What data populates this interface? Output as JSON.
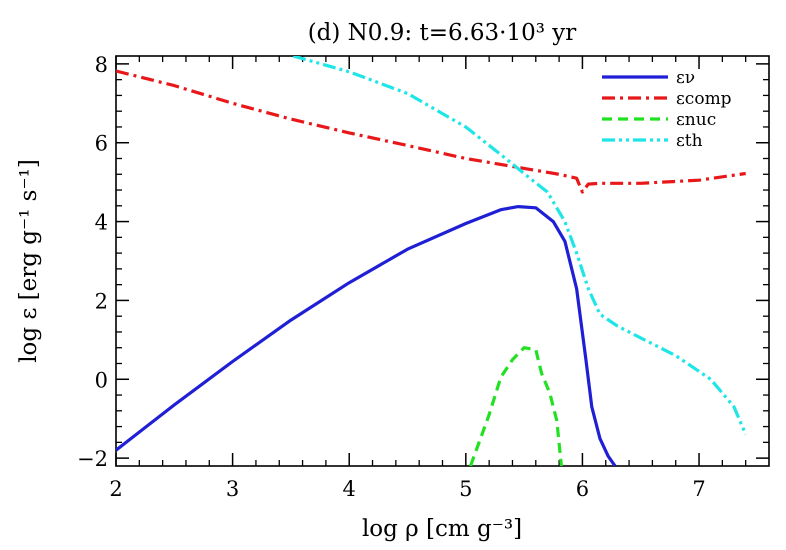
{
  "chart_data": {
    "type": "line",
    "title": "(d) N0.9: t=6.63·10³ yr",
    "xlabel": "log ρ [cm g⁻³]",
    "ylabel": "log ε [erg g⁻¹ s⁻¹]",
    "xlim": [
      2,
      7.6
    ],
    "ylim": [
      -2.2,
      8.2
    ],
    "xticks": [
      2,
      3,
      4,
      5,
      6,
      7
    ],
    "yticks": [
      -2,
      0,
      2,
      4,
      6,
      8
    ],
    "legend_position": "top-right",
    "grid": false,
    "series": [
      {
        "name": "εν",
        "color": "#1f1fd6",
        "dash": "solid",
        "points": [
          [
            2.0,
            -1.8
          ],
          [
            2.5,
            -0.65
          ],
          [
            3.0,
            0.45
          ],
          [
            3.5,
            1.5
          ],
          [
            4.0,
            2.45
          ],
          [
            4.5,
            3.3
          ],
          [
            5.0,
            3.95
          ],
          [
            5.3,
            4.3
          ],
          [
            5.45,
            4.38
          ],
          [
            5.6,
            4.35
          ],
          [
            5.75,
            4.0
          ],
          [
            5.85,
            3.5
          ],
          [
            5.95,
            2.3
          ],
          [
            6.03,
            0.5
          ],
          [
            6.08,
            -0.7
          ],
          [
            6.15,
            -1.5
          ],
          [
            6.22,
            -1.95
          ],
          [
            6.28,
            -2.2
          ]
        ]
      },
      {
        "name": "εcomp",
        "color": "#e8181a",
        "dash": "dashdot",
        "points": [
          [
            2.0,
            7.82
          ],
          [
            2.5,
            7.45
          ],
          [
            3.0,
            7.0
          ],
          [
            3.5,
            6.6
          ],
          [
            4.0,
            6.25
          ],
          [
            4.5,
            5.93
          ],
          [
            5.0,
            5.6
          ],
          [
            5.5,
            5.35
          ],
          [
            5.8,
            5.2
          ],
          [
            5.95,
            5.1
          ],
          [
            6.0,
            4.75
          ],
          [
            6.05,
            4.95
          ],
          [
            6.15,
            4.97
          ],
          [
            6.5,
            4.97
          ],
          [
            7.0,
            5.05
          ],
          [
            7.4,
            5.22
          ]
        ]
      },
      {
        "name": "εnuc",
        "color": "#22e022",
        "dash": "dashed",
        "points": [
          [
            5.04,
            -2.2
          ],
          [
            5.2,
            -0.9
          ],
          [
            5.3,
            0.05
          ],
          [
            5.4,
            0.5
          ],
          [
            5.5,
            0.8
          ],
          [
            5.6,
            0.75
          ],
          [
            5.65,
            0.15
          ],
          [
            5.72,
            -0.35
          ],
          [
            5.78,
            -1.05
          ],
          [
            5.82,
            -2.2
          ]
        ]
      },
      {
        "name": "εth",
        "color": "#1ee6e6",
        "dash": "dashdotdot",
        "points": [
          [
            3.52,
            8.2
          ],
          [
            4.0,
            7.8
          ],
          [
            4.5,
            7.25
          ],
          [
            5.0,
            6.4
          ],
          [
            5.3,
            5.7
          ],
          [
            5.5,
            5.22
          ],
          [
            5.7,
            4.75
          ],
          [
            5.85,
            4.0
          ],
          [
            5.95,
            3.2
          ],
          [
            6.05,
            2.3
          ],
          [
            6.15,
            1.65
          ],
          [
            6.3,
            1.35
          ],
          [
            6.5,
            1.05
          ],
          [
            6.8,
            0.6
          ],
          [
            7.1,
            0.0
          ],
          [
            7.3,
            -0.7
          ],
          [
            7.4,
            -1.4
          ]
        ]
      }
    ]
  }
}
